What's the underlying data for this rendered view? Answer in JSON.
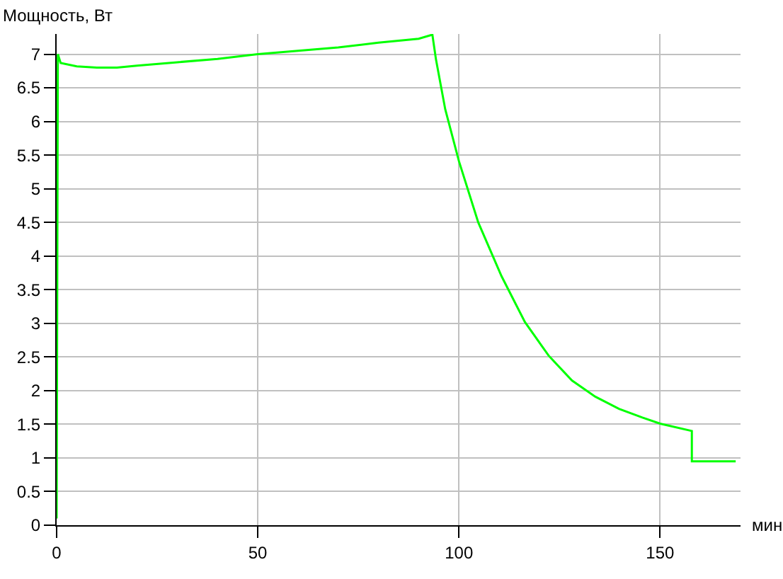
{
  "chart_data": {
    "type": "line",
    "ylabel": "Мощность, Вт",
    "xlabel": "мин",
    "xlim": [
      0,
      170
    ],
    "xticks": [
      0,
      50,
      100,
      150
    ],
    "ylim": [
      0,
      7.3
    ],
    "yticks": [
      0,
      0.5,
      1,
      1.5,
      2,
      2.5,
      3,
      3.5,
      4,
      4.5,
      5,
      5.5,
      6,
      6.5,
      7
    ],
    "grid": true,
    "marker": "none",
    "line_style": "solid",
    "series": [
      {
        "color": "#00ff00",
        "x": [
          0,
          0.3,
          1,
          5,
          10,
          15,
          20,
          30,
          40,
          50,
          60,
          70,
          80,
          90,
          93.4,
          94.3,
          96.6,
          100,
          104.8,
          110.6,
          116.4,
          122.3,
          128.1,
          133.9,
          139.8,
          145.6,
          150,
          157.9,
          157.9,
          168.8
        ],
        "values": [
          0.1,
          7.0,
          6.87,
          6.82,
          6.8,
          6.8,
          6.83,
          6.88,
          6.93,
          7.0,
          7.05,
          7.1,
          7.17,
          7.23,
          7.29,
          6.92,
          6.18,
          5.41,
          4.5,
          3.7,
          3.02,
          2.52,
          2.15,
          1.91,
          1.73,
          1.6,
          1.51,
          1.4,
          0.95,
          0.95
        ]
      }
    ]
  }
}
